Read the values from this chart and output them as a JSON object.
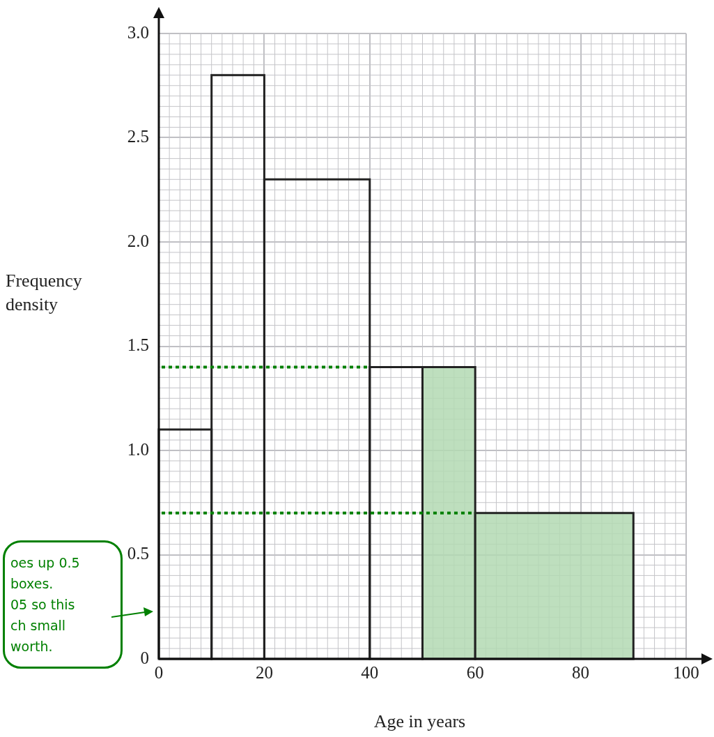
{
  "chart_data": {
    "type": "histogram",
    "xlabel": "Age in years",
    "ylabel": "Frequency density",
    "bins": [
      0,
      10,
      20,
      40,
      50,
      60,
      90
    ],
    "values": [
      1.1,
      2.8,
      2.3,
      1.4,
      1.4,
      0.7
    ],
    "colors": [
      "#222222",
      "#222222",
      "#222222",
      "#222222",
      "#b3d9b3",
      "#b3d9b3"
    ],
    "xlim": [
      0,
      100
    ],
    "xticks": [
      0,
      20,
      40,
      60,
      80,
      100
    ],
    "ylim": [
      0,
      3
    ],
    "yticks": [
      0,
      0.5,
      {
        "value": 1,
        "label": "1.0"
      },
      1.5,
      {
        "value": 2,
        "label": "2.0"
      },
      2.5,
      {
        "value": 3,
        "label": "3.0"
      }
    ],
    "grid": true,
    "ref_lines": [
      {
        "axis": "y",
        "value": 1.4,
        "color": "#008000",
        "line_style": "dotted"
      },
      {
        "axis": "y",
        "value": 0.7,
        "color": "#008000",
        "line_style": "dotted"
      }
    ],
    "annotations": [
      "oes up 0.5\nboxes.\n05 so this\nch small\nworth."
    ]
  }
}
